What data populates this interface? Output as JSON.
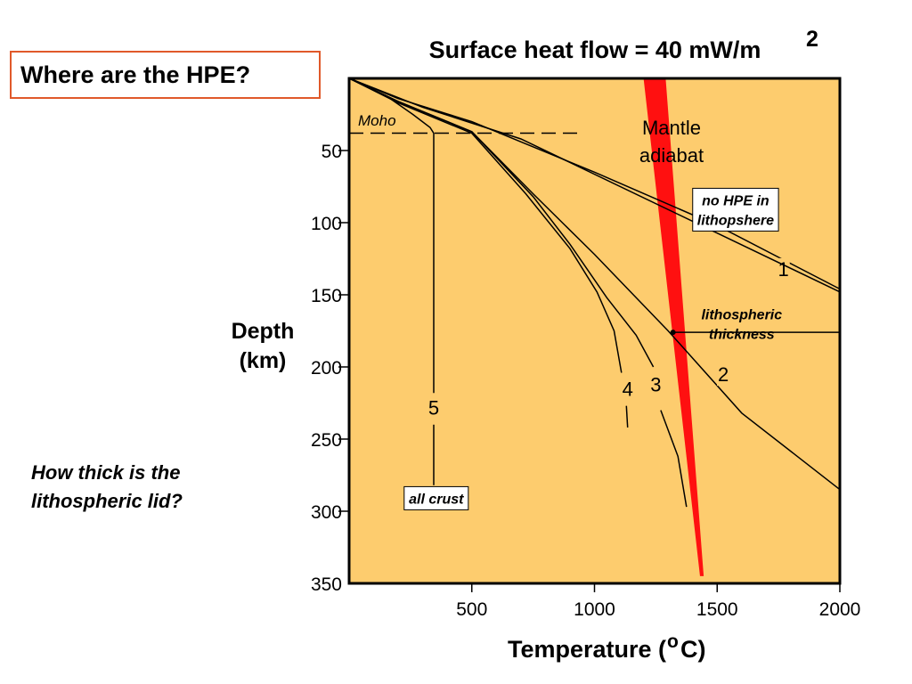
{
  "question_box": "Where are the HPE?",
  "side_question": "How thick is the lithospheric lid?",
  "colors": {
    "plot_bg": "#fdcc6e",
    "adiabat": "#ff1010",
    "question_border": "#e0592a",
    "lines": "#000000"
  },
  "chart_data": {
    "type": "line",
    "title": "Surface heat flow = 40 mW/m",
    "title_superscript": "2",
    "xlabel": "Temperature (",
    "xlabel_superscript": "o",
    "xlabel_suffix": "C)",
    "ylabel_line1": "Depth",
    "ylabel_line2": "(km)",
    "xlim": [
      0,
      2000
    ],
    "ylim": [
      0,
      350
    ],
    "y_inverted": true,
    "x_ticks": [
      "500",
      "1000",
      "1500",
      "2000"
    ],
    "x_tick_values": [
      500,
      1000,
      1500,
      2000
    ],
    "y_ticks": [
      "50",
      "100",
      "150",
      "200",
      "250",
      "300",
      "350"
    ],
    "y_tick_values": [
      50,
      100,
      150,
      200,
      250,
      300,
      350
    ],
    "grid": false,
    "moho": {
      "label": "Moho",
      "depth": 38,
      "x_end": 950
    },
    "mantle_adiabat": {
      "label_line1": "Mantle",
      "label_line2": "adiabat",
      "left_edge": [
        [
          1200,
          0
        ],
        [
          1430,
          345
        ]
      ],
      "right_edge": [
        [
          1290,
          0
        ],
        [
          1445,
          345
        ]
      ]
    },
    "series": [
      {
        "name": "1",
        "points": [
          [
            0,
            0
          ],
          [
            200,
            14
          ],
          [
            500,
            30
          ],
          [
            1000,
            65
          ],
          [
            1500,
            102
          ],
          [
            2000,
            146
          ]
        ],
        "label_at": [
          1770,
          132
        ]
      },
      {
        "name": "2",
        "points": [
          [
            0,
            0
          ],
          [
            200,
            16
          ],
          [
            500,
            37
          ],
          [
            750,
            80
          ],
          [
            1000,
            122
          ],
          [
            1300,
            175
          ],
          [
            1600,
            232
          ],
          [
            2000,
            285
          ]
        ],
        "label_at": [
          1525,
          205
        ]
      },
      {
        "name": "3",
        "points": [
          [
            0,
            0
          ],
          [
            200,
            16
          ],
          [
            500,
            37
          ],
          [
            750,
            82
          ],
          [
            900,
            115
          ],
          [
            1050,
            152
          ],
          [
            1170,
            178
          ],
          [
            1240,
            200
          ]
        ],
        "label_at": [
          1250,
          212
        ]
      },
      {
        "name": "3",
        "points": [
          [
            1270,
            230
          ],
          [
            1340,
            262
          ],
          [
            1375,
            297
          ]
        ],
        "label_at": null
      },
      {
        "name": "4",
        "points": [
          [
            0,
            0
          ],
          [
            200,
            17
          ],
          [
            500,
            38
          ],
          [
            720,
            80
          ],
          [
            900,
            118
          ],
          [
            1010,
            148
          ],
          [
            1080,
            175
          ],
          [
            1110,
            204
          ]
        ],
        "label_at": [
          1135,
          215
        ]
      },
      {
        "name": "4",
        "points": [
          [
            1130,
            227
          ],
          [
            1135,
            242
          ]
        ],
        "label_at": null
      },
      {
        "name": "5",
        "points": [
          [
            0,
            0
          ],
          [
            150,
            12
          ],
          [
            260,
            25
          ],
          [
            330,
            34
          ],
          [
            345,
            38
          ],
          [
            345,
            218
          ]
        ],
        "label_at": [
          345,
          228
        ]
      },
      {
        "name": "5",
        "points": [
          [
            345,
            240
          ],
          [
            345,
            282
          ]
        ],
        "label_at": null
      },
      {
        "name": "",
        "points": [
          [
            0,
            0
          ],
          [
            300,
            20
          ],
          [
            700,
            42
          ],
          [
            2000,
            148
          ]
        ],
        "label_at": null
      },
      {
        "name": "",
        "points": [
          [
            1320,
            176
          ],
          [
            2000,
            176
          ]
        ],
        "label_at": null
      }
    ],
    "annotations": [
      {
        "id": "no-hpe",
        "line1": "no HPE in",
        "line2": "lithopshere",
        "boxed": true,
        "at": [
          1575,
          91
        ]
      },
      {
        "id": "lith-thick",
        "line1": "lithospheric",
        "line2": "thickness",
        "boxed": false,
        "at": [
          1600,
          170
        ]
      },
      {
        "id": "all-crust",
        "line1": "all crust",
        "line2": "",
        "boxed": true,
        "at": [
          355,
          291
        ]
      }
    ]
  }
}
